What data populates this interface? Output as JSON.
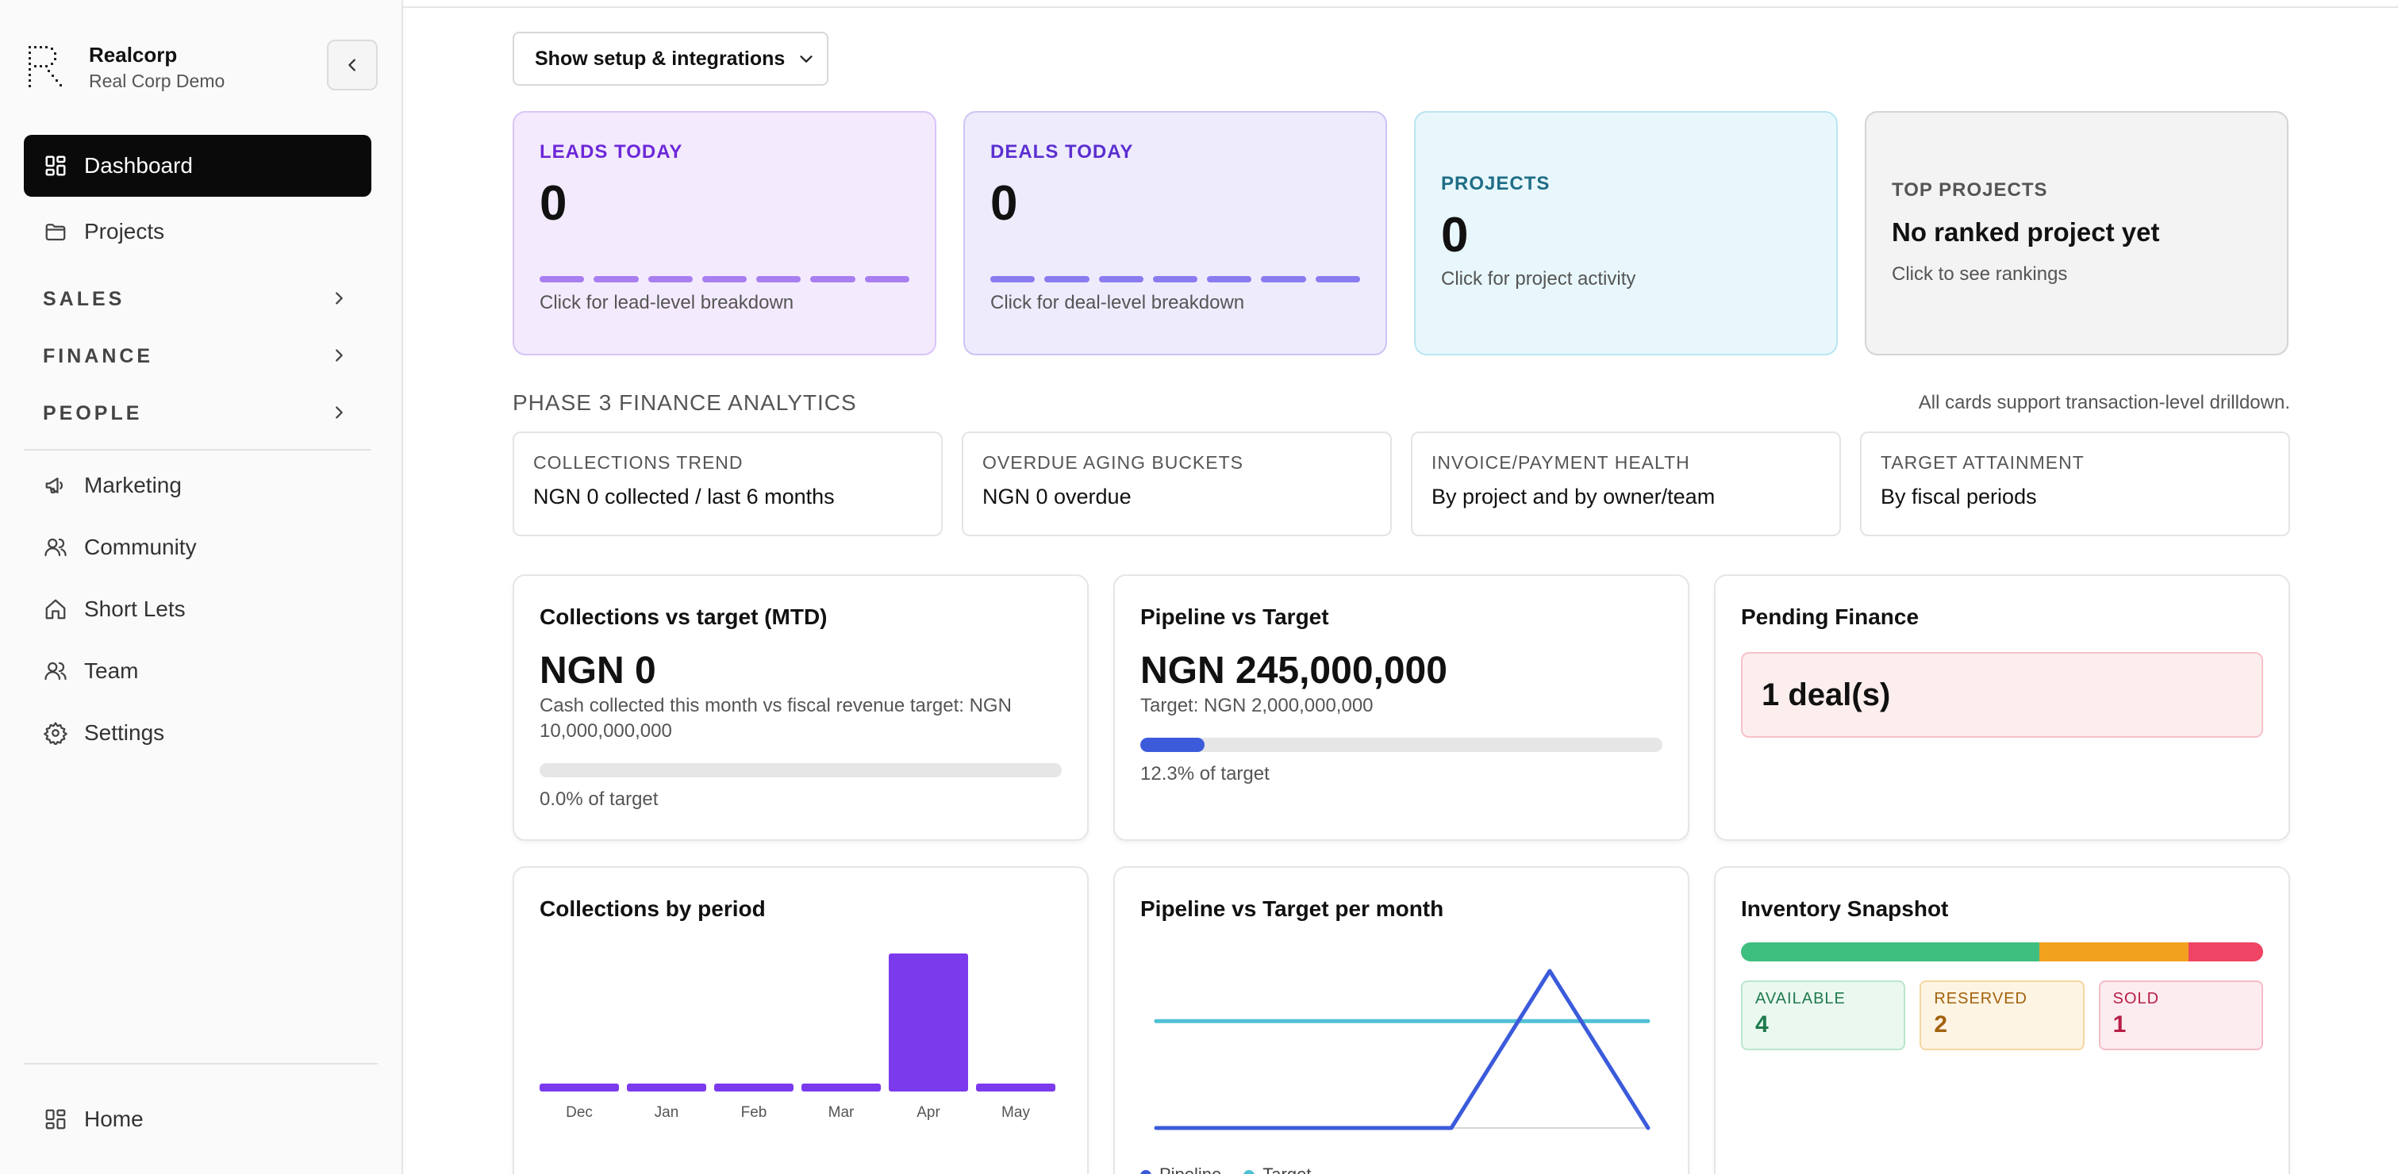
{
  "sidebar": {
    "brand_name": "Realcorp",
    "brand_sub": "Real Corp Demo",
    "items": [
      {
        "label": "Dashboard",
        "icon": "dashboard-icon"
      },
      {
        "label": "Projects",
        "icon": "folder-icon"
      }
    ],
    "groups": [
      {
        "label": "SALES"
      },
      {
        "label": "FINANCE"
      },
      {
        "label": "PEOPLE"
      }
    ],
    "items2": [
      {
        "label": "Marketing",
        "icon": "megaphone-icon"
      },
      {
        "label": "Community",
        "icon": "users-icon"
      },
      {
        "label": "Short Lets",
        "icon": "house-icon"
      },
      {
        "label": "Team",
        "icon": "users-icon"
      },
      {
        "label": "Settings",
        "icon": "gear-icon"
      }
    ],
    "footer": {
      "label": "Home",
      "icon": "dashboard-icon"
    }
  },
  "toolbar": {
    "setup_label": "Show setup & integrations"
  },
  "kpis": {
    "leads": {
      "label": "LEADS TODAY",
      "value": "0",
      "hint": "Click for lead-level breakdown"
    },
    "deals": {
      "label": "DEALS TODAY",
      "value": "0",
      "hint": "Click for deal-level breakdown"
    },
    "projects": {
      "label": "PROJECTS",
      "value": "0",
      "hint": "Click for project activity"
    },
    "top": {
      "label": "TOP PROJECTS",
      "value": "No ranked project yet",
      "hint": "Click to see rankings"
    }
  },
  "analytics": {
    "title": "PHASE 3 FINANCE ANALYTICS",
    "note": "All cards support transaction-level drilldown.",
    "cards": [
      {
        "label": "COLLECTIONS TREND",
        "value": "NGN 0 collected / last 6 months"
      },
      {
        "label": "OVERDUE AGING BUCKETS",
        "value": "NGN 0 overdue"
      },
      {
        "label": "INVOICE/PAYMENT HEALTH",
        "value": "By project and by owner/team"
      },
      {
        "label": "TARGET ATTAINMENT",
        "value": "By fiscal periods"
      }
    ]
  },
  "collections_target": {
    "title": "Collections vs target (MTD)",
    "value": "NGN 0",
    "sub": "Cash collected this month vs fiscal revenue target: NGN 10,000,000,000",
    "progress": 0.0,
    "pct_label": "0.0% of target"
  },
  "pipeline_target": {
    "title": "Pipeline vs Target",
    "value": "NGN 245,000,000",
    "sub": "Target: NGN 2,000,000,000",
    "progress": 0.123,
    "pct_label": "12.3% of target"
  },
  "pending_finance": {
    "title": "Pending Finance",
    "value": "1 deal(s)"
  },
  "collections_chart": {
    "title": "Collections by period"
  },
  "pipeline_chart": {
    "title": "Pipeline vs Target per month"
  },
  "inventory": {
    "title": "Inventory Snapshot",
    "available": {
      "label": "AVAILABLE",
      "value": 4
    },
    "reserved": {
      "label": "RESERVED",
      "value": 2
    },
    "sold": {
      "label": "SOLD",
      "value": 1
    }
  },
  "colors": {
    "accent_purple": "#7c3aed",
    "pipeline_blue": "#3b5bdb",
    "target_cyan": "#4fc1d4",
    "available_green": "#3fbf7f",
    "reserved_orange": "#f2a11e",
    "sold_red": "#ef4463"
  },
  "chart_data": [
    {
      "type": "bar",
      "categories": [
        "Dec",
        "Jan",
        "Feb",
        "Mar",
        "Apr",
        "May"
      ],
      "values": [
        0,
        0,
        0,
        0,
        1,
        0
      ],
      "title": "Collections by period",
      "xlabel": "",
      "ylabel": ""
    },
    {
      "type": "line",
      "title": "Pipeline vs Target per month",
      "x": [
        1,
        2,
        3,
        4,
        5,
        6
      ],
      "series": [
        {
          "name": "Pipeline",
          "values": [
            0,
            0,
            0,
            0,
            245000000,
            0
          ]
        },
        {
          "name": "Target",
          "values": [
            166666667,
            166666667,
            166666667,
            166666667,
            166666667,
            166666667
          ]
        }
      ],
      "ylim": [
        0,
        245000000
      ]
    }
  ]
}
